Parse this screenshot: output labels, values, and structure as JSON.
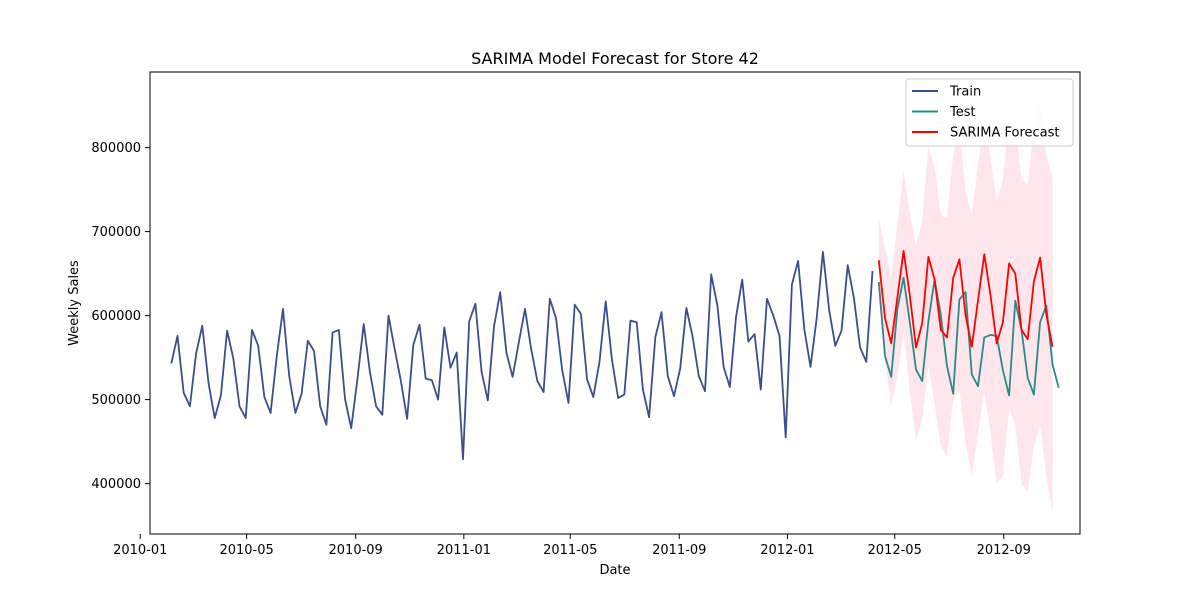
{
  "chart_data": {
    "type": "line",
    "title": "SARIMA Model Forecast for Store 42",
    "xlabel": "Date",
    "ylabel": "Weekly Sales",
    "xlim": [
      "2010-01-12",
      "2012-11-26"
    ],
    "ylim": [
      340000,
      890000
    ],
    "x_ticks": [
      {
        "date": "2010-01-01",
        "label": "2010-01"
      },
      {
        "date": "2010-05-01",
        "label": "2010-05"
      },
      {
        "date": "2010-09-01",
        "label": "2010-09"
      },
      {
        "date": "2011-01-01",
        "label": "2011-01"
      },
      {
        "date": "2011-05-01",
        "label": "2011-05"
      },
      {
        "date": "2011-09-01",
        "label": "2011-09"
      },
      {
        "date": "2012-01-01",
        "label": "2012-01"
      },
      {
        "date": "2012-05-01",
        "label": "2012-05"
      },
      {
        "date": "2012-09-01",
        "label": "2012-09"
      }
    ],
    "y_ticks": [
      {
        "value": 400000,
        "label": "400000"
      },
      {
        "value": 500000,
        "label": "500000"
      },
      {
        "value": 600000,
        "label": "600000"
      },
      {
        "value": 700000,
        "label": "700000"
      },
      {
        "value": 800000,
        "label": "800000"
      }
    ],
    "legend_position": "top-right",
    "grid": false,
    "colors": {
      "train": "#3a4f8c",
      "test": "#2a8a85",
      "forecast": "#ff0000",
      "band": "#ffd6e0"
    },
    "series": [
      {
        "name": "Train",
        "start_date": "2010-02-05",
        "interval_days": 7,
        "values": [
          543000,
          576000,
          508000,
          492000,
          555000,
          588000,
          520000,
          478000,
          505000,
          582000,
          549000,
          492000,
          478000,
          583000,
          564000,
          503000,
          484000,
          552000,
          608000,
          528000,
          484000,
          507000,
          570000,
          558000,
          492000,
          470000,
          580000,
          583000,
          501000,
          466000,
          525000,
          590000,
          533000,
          492000,
          482000,
          600000,
          560000,
          522000,
          477000,
          565000,
          589000,
          525000,
          523000,
          500000,
          586000,
          538000,
          556000,
          429000,
          593000,
          614000,
          533000,
          499000,
          587000,
          628000,
          556000,
          527000,
          568000,
          608000,
          560000,
          522000,
          509000,
          620000,
          597000,
          535000,
          496000,
          613000,
          602000,
          524000,
          503000,
          545000,
          617000,
          548000,
          502000,
          506000,
          594000,
          592000,
          512000,
          479000,
          574000,
          604000,
          528000,
          504000,
          537000,
          609000,
          575000,
          528000,
          510000,
          649000,
          612000,
          539000,
          515000,
          598000,
          643000,
          569000,
          578000,
          512000,
          620000,
          600000,
          576000,
          455000,
          637000,
          665000,
          584000,
          539000,
          597000,
          676000,
          607000,
          564000,
          582000,
          660000,
          621000,
          562000,
          545000,
          653000
        ]
      },
      {
        "name": "Test",
        "start_date": "2012-04-13",
        "interval_days": 7,
        "values": [
          640000,
          552000,
          527000,
          608000,
          645000,
          592000,
          536000,
          522000,
          593000,
          643000,
          601000,
          540000,
          507000,
          619000,
          628000,
          530000,
          516000,
          574000,
          577000,
          576000,
          535000,
          505000,
          618000,
          583000,
          526000,
          506000,
          592000,
          612000,
          542000,
          514000
        ]
      },
      {
        "name": "SARIMA Forecast",
        "start_date": "2012-04-13",
        "interval_days": 7,
        "values": [
          666000,
          597000,
          567000,
          622000,
          677000,
          624000,
          562000,
          591000,
          670000,
          643000,
          583000,
          574000,
          645000,
          667000,
          600000,
          563000,
          618000,
          673000,
          624000,
          567000,
          592000,
          662000,
          650000,
          583000,
          572000,
          641000,
          669000,
          602000,
          563000
        ],
        "lower": [
          618000,
          545000,
          492000,
          528000,
          580000,
          510000,
          452000,
          476000,
          540000,
          495000,
          445000,
          432000,
          500000,
          512000,
          448000,
          410000,
          460000,
          510000,
          460000,
          400000,
          410000,
          490000,
          470000,
          400000,
          390000,
          445000,
          470000,
          410000,
          365000
        ],
        "upper": [
          716000,
          680000,
          645000,
          710000,
          772000,
          722000,
          683000,
          712000,
          800000,
          777000,
          720000,
          716000,
          792000,
          822000,
          748000,
          720000,
          778000,
          836000,
          788000,
          735000,
          762000,
          834000,
          826000,
          762000,
          755000,
          826000,
          860000,
          790000,
          763000
        ]
      }
    ]
  }
}
